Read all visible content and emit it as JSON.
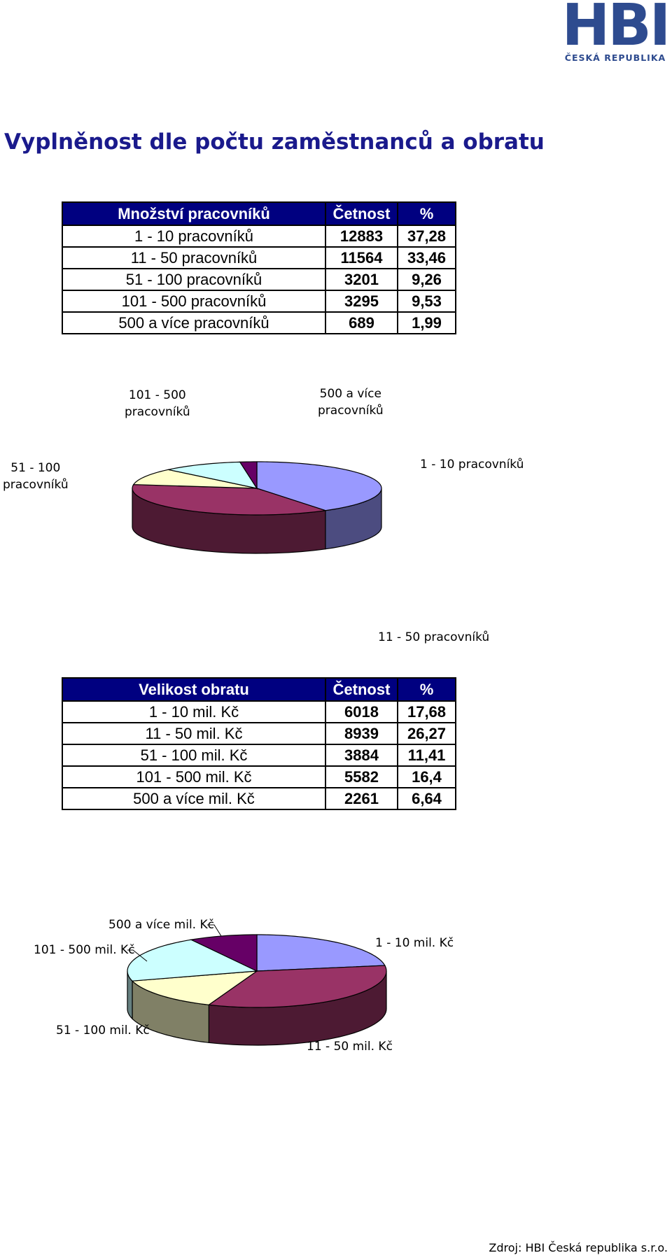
{
  "logo": {
    "text": "HBI",
    "subtitle": "ČESKÁ REPUBLIKA"
  },
  "title": "Vyplněnost dle počtu zaměstnanců a obratu",
  "table1": {
    "headers": [
      "Množství pracovníků",
      "Četnost",
      "%"
    ],
    "rows": [
      [
        "1 - 10 pracovníků",
        "12883",
        "37,28"
      ],
      [
        "11 - 50 pracovníků",
        "11564",
        "33,46"
      ],
      [
        "51 - 100 pracovníků",
        "3201",
        "9,26"
      ],
      [
        "101 - 500 pracovníků",
        "3295",
        "9,53"
      ],
      [
        "500 a více pracovníků",
        "689",
        "1,99"
      ]
    ]
  },
  "table2": {
    "headers": [
      "Velikost obratu",
      "Četnost",
      "%"
    ],
    "rows": [
      [
        "1 - 10 mil. Kč",
        "6018",
        "17,68"
      ],
      [
        "11 - 50 mil. Kč",
        "8939",
        "26,27"
      ],
      [
        "51 - 100 mil. Kč",
        "3884",
        "11,41"
      ],
      [
        "101 - 500 mil. Kč",
        "5582",
        "16,4"
      ],
      [
        "500 a více mil. Kč",
        "2261",
        "6,64"
      ]
    ]
  },
  "chart_data": [
    {
      "type": "pie",
      "categories": [
        "1 - 10 pracovníků",
        "11 - 50 pracovníků",
        "51 - 100 pracovníků",
        "101 - 500 pracovníků",
        "500 a více pracovníků"
      ],
      "values": [
        12883,
        11564,
        3201,
        3295,
        689
      ],
      "labels": [
        [
          "1 - 10 pracovníků"
        ],
        [
          "11 - 50 pracovníků"
        ],
        [
          "51 - 100",
          "pracovníků"
        ],
        [
          "101 - 500",
          "pracovníků"
        ],
        [
          "500 a více",
          "pracovníků"
        ]
      ],
      "colors": [
        "#9999ff",
        "#993366",
        "#ffffcc",
        "#ccffff",
        "#660066"
      ],
      "side_colors": [
        "#4c4c80",
        "#4d1a33",
        "#808066",
        "#668080",
        "#330033"
      ]
    },
    {
      "type": "pie",
      "categories": [
        "1 - 10 mil. Kč",
        "11 - 50 mil. Kč",
        "51 - 100 mil. Kč",
        "101 - 500 mil. Kč",
        "500 a více mil. Kč"
      ],
      "values": [
        6018,
        8939,
        3884,
        5582,
        2261
      ],
      "labels": [
        [
          "1 - 10 mil. Kč"
        ],
        [
          "11 - 50 mil. Kč"
        ],
        [
          "51 - 100 mil. Kč"
        ],
        [
          "101 - 500 mil. Kč"
        ],
        [
          "500 a více mil. Kč"
        ]
      ],
      "colors": [
        "#9999ff",
        "#993366",
        "#ffffcc",
        "#ccffff",
        "#660066"
      ],
      "side_colors": [
        "#4c4c80",
        "#4d1a33",
        "#808066",
        "#668080",
        "#330033"
      ]
    }
  ],
  "footer": "Zdroj: HBI Česká republika s.r.o."
}
